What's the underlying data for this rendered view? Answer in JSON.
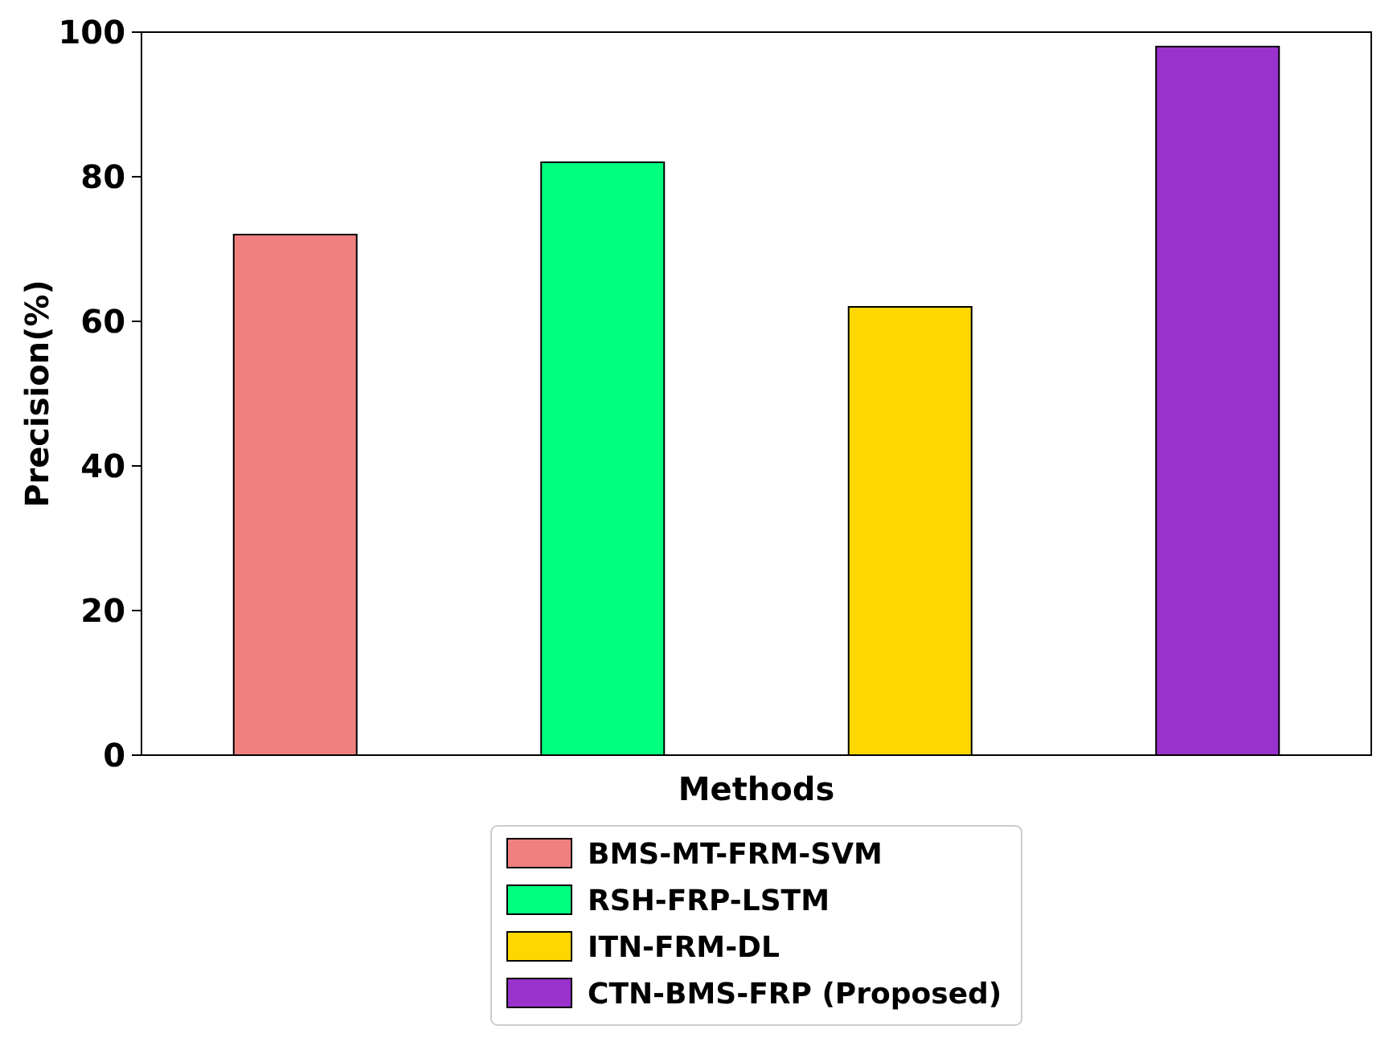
{
  "chart_data": {
    "type": "bar",
    "xlabel": "Methods",
    "ylabel": "Precision(%)",
    "categories": [
      null,
      null,
      null,
      null
    ],
    "stacked": true,
    "series": [
      {
        "name": "BMS-MT-FRM-SVM",
        "color": "#f08080",
        "values": [
          72,
          null,
          null,
          null
        ]
      },
      {
        "name": "RSH-FRP-LSTM",
        "color": "#00ff7f",
        "values": [
          null,
          82,
          null,
          null
        ]
      },
      {
        "name": "ITN-FRM-DL",
        "color": "#ffd700",
        "values": [
          null,
          null,
          62,
          null
        ]
      },
      {
        "name": "CTN-BMS-FRP (Proposed)",
        "color": "#9932cc",
        "values": [
          null,
          null,
          null,
          98
        ]
      }
    ],
    "ylim": [
      0,
      100
    ],
    "yticks": [
      0,
      20,
      40,
      60,
      80,
      100
    ],
    "grid": false,
    "legend": "bottom"
  }
}
